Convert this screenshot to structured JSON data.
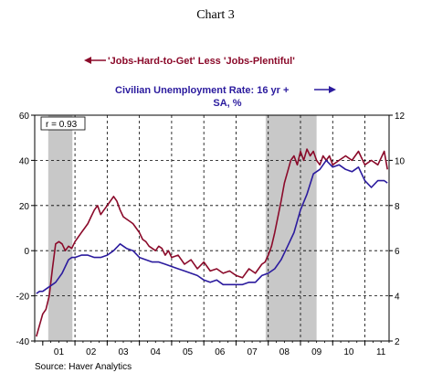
{
  "chart_data": {
    "type": "line",
    "title": "Chart 3",
    "source": "Source: Haver Analytics",
    "annotation": "r = 0.93",
    "x_tick_labels": [
      "01",
      "02",
      "03",
      "04",
      "05",
      "06",
      "07",
      "08",
      "09",
      "10",
      "11"
    ],
    "x_range": [
      2000.75,
      2011.75
    ],
    "left_axis": {
      "ticks": [
        -40,
        -20,
        0,
        20,
        40,
        60
      ],
      "range": [
        -40,
        60
      ]
    },
    "right_axis": {
      "ticks": [
        2,
        4,
        6,
        8,
        10,
        12
      ],
      "range": [
        2,
        12
      ]
    },
    "grid": true,
    "recession_shading": [
      [
        2001.17,
        2001.92
      ],
      [
        2007.92,
        2009.5
      ]
    ],
    "series": [
      {
        "name": "'Jobs-Hard-to-Get' Less 'Jobs-Plentiful'",
        "axis": "left",
        "color": "#8b0a2a",
        "legend_arrow": "left",
        "x": [
          2000.8,
          2000.9,
          2001.0,
          2001.1,
          2001.2,
          2001.3,
          2001.4,
          2001.5,
          2001.6,
          2001.7,
          2001.8,
          2001.9,
          2002.0,
          2002.1,
          2002.2,
          2002.3,
          2002.4,
          2002.5,
          2002.6,
          2002.7,
          2002.8,
          2002.9,
          2003.0,
          2003.1,
          2003.2,
          2003.3,
          2003.4,
          2003.5,
          2003.6,
          2003.7,
          2003.8,
          2003.9,
          2004.0,
          2004.1,
          2004.2,
          2004.3,
          2004.4,
          2004.5,
          2004.6,
          2004.7,
          2004.8,
          2004.9,
          2005.0,
          2005.2,
          2005.4,
          2005.6,
          2005.8,
          2006.0,
          2006.2,
          2006.4,
          2006.6,
          2006.8,
          2007.0,
          2007.2,
          2007.4,
          2007.6,
          2007.8,
          2007.9,
          2008.0,
          2008.1,
          2008.2,
          2008.3,
          2008.4,
          2008.5,
          2008.6,
          2008.7,
          2008.8,
          2008.9,
          2009.0,
          2009.1,
          2009.2,
          2009.3,
          2009.4,
          2009.5,
          2009.6,
          2009.7,
          2009.8,
          2009.9,
          2010.0,
          2010.2,
          2010.4,
          2010.6,
          2010.8,
          2011.0,
          2011.2,
          2011.4,
          2011.6,
          2011.7
        ],
        "values": [
          -38,
          -33,
          -28,
          -26,
          -20,
          -8,
          3,
          4,
          3,
          0,
          2,
          1,
          4,
          6,
          8,
          10,
          12,
          15,
          18,
          20,
          16,
          18,
          20,
          22,
          24,
          22,
          18,
          15,
          14,
          13,
          12,
          10,
          8,
          5,
          4,
          2,
          1,
          0,
          2,
          1,
          -2,
          0,
          -3,
          -2,
          -6,
          -4,
          -8,
          -5,
          -9,
          -8,
          -10,
          -9,
          -11,
          -12,
          -8,
          -10,
          -6,
          -5,
          -2,
          2,
          8,
          15,
          22,
          30,
          35,
          40,
          42,
          38,
          44,
          40,
          45,
          42,
          44,
          40,
          38,
          42,
          40,
          42,
          38,
          40,
          42,
          40,
          44,
          38,
          40,
          38,
          44,
          36
        ]
      },
      {
        "name": "Civilian Unemployment Rate: 16 yr + SA, %",
        "axis": "right",
        "color": "#2b1b9e",
        "legend_arrow": "right",
        "x": [
          2000.8,
          2000.9,
          2001.0,
          2001.1,
          2001.2,
          2001.3,
          2001.4,
          2001.5,
          2001.6,
          2001.7,
          2001.8,
          2001.9,
          2002.0,
          2002.2,
          2002.4,
          2002.6,
          2002.8,
          2003.0,
          2003.2,
          2003.4,
          2003.6,
          2003.8,
          2004.0,
          2004.2,
          2004.4,
          2004.6,
          2004.8,
          2005.0,
          2005.2,
          2005.4,
          2005.6,
          2005.8,
          2006.0,
          2006.2,
          2006.4,
          2006.6,
          2006.8,
          2007.0,
          2007.2,
          2007.4,
          2007.6,
          2007.8,
          2008.0,
          2008.2,
          2008.4,
          2008.6,
          2008.8,
          2009.0,
          2009.2,
          2009.4,
          2009.6,
          2009.8,
          2010.0,
          2010.2,
          2010.4,
          2010.6,
          2010.8,
          2011.0,
          2011.2,
          2011.4,
          2011.6,
          2011.7
        ],
        "values": [
          4.1,
          4.2,
          4.2,
          4.3,
          4.4,
          4.5,
          4.6,
          4.8,
          5.0,
          5.3,
          5.6,
          5.7,
          5.7,
          5.8,
          5.8,
          5.7,
          5.7,
          5.8,
          6.0,
          6.3,
          6.1,
          6.0,
          5.7,
          5.6,
          5.5,
          5.5,
          5.4,
          5.3,
          5.2,
          5.1,
          5.0,
          4.9,
          4.7,
          4.6,
          4.7,
          4.5,
          4.5,
          4.5,
          4.5,
          4.6,
          4.6,
          4.9,
          5.0,
          5.2,
          5.6,
          6.2,
          6.8,
          7.8,
          8.5,
          9.4,
          9.6,
          10.0,
          9.7,
          9.8,
          9.6,
          9.5,
          9.7,
          9.1,
          8.8,
          9.1,
          9.1,
          9.0
        ]
      }
    ]
  }
}
